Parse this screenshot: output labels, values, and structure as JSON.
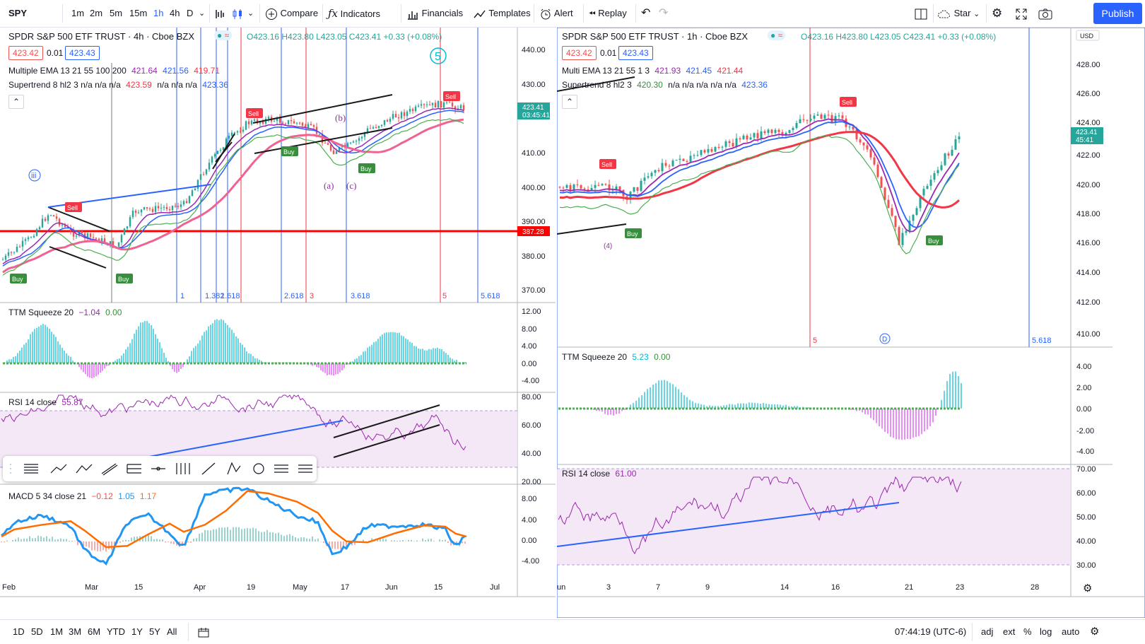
{
  "toolbar": {
    "symbol": "SPY",
    "intervals": [
      "1m",
      "2m",
      "5m",
      "15m",
      "1h",
      "4h",
      "D"
    ],
    "compare": "Compare",
    "indicators": "Indicators",
    "financials": "Financials",
    "templates": "Templates",
    "alert": "Alert",
    "replay": "Replay",
    "star": "Star",
    "publish": "Publish"
  },
  "left_chart": {
    "title": "SPDR S&P 500 ETF TRUST · 4h · Cboe BZX",
    "ohlc": "O423.16 H423.80 L423.05 C423.41 +0.33 (+0.08%)",
    "bid": "423.42",
    "spread": "0.01",
    "ask": "423.43",
    "ema_label": "Multiple EMA 13 21 55 100 200",
    "ema_values": [
      "421.64",
      "421.56",
      "419.71"
    ],
    "st_label": "Supertrend 8 hl2 3  n/a n/a n/a",
    "st_values": [
      "423.59",
      "n/a n/a n/a",
      "423.36"
    ],
    "price_axis": [
      "440.00",
      "430.00",
      "410.00",
      "400.00",
      "390.00",
      "380.00",
      "370.00"
    ],
    "last_price": "423.41",
    "countdown": "03:45:41",
    "level_price": "387.28",
    "fib_labels": [
      "1",
      "1.382",
      "1.618",
      "2.618",
      "3",
      "3.618",
      "5",
      "5.618"
    ],
    "squeeze_label": "TTM Squeeze 20",
    "squeeze_values": [
      "−1.04",
      "0.00"
    ],
    "squeeze_axis": [
      "12.00",
      "8.00",
      "4.00",
      "0.00",
      "-4.00"
    ],
    "rsi_label": "RSI 14 close",
    "rsi_value": "55.87",
    "rsi_axis": [
      "80.00",
      "60.00",
      "40.00",
      "20.00"
    ],
    "macd_label": "MACD 5 34 close 21",
    "macd_values": [
      "−0.12",
      "1.05",
      "1.17"
    ],
    "macd_axis": [
      "8.00",
      "4.00",
      "0.00",
      "-4.00"
    ],
    "time_axis": [
      "Feb",
      "Mar",
      "15",
      "Apr",
      "19",
      "May",
      "17",
      "Jun",
      "15",
      "Jul"
    ],
    "wave_labels": [
      "5",
      "iii",
      "(a)",
      "(c)",
      "(b)"
    ],
    "signals": [
      "Sell",
      "Sell",
      "Sell",
      "Buy",
      "Buy",
      "Buy",
      "Buy"
    ]
  },
  "right_chart": {
    "title": "SPDR S&P 500 ETF TRUST · 1h · Cboe BZX",
    "ohlc": "O423.16 H423.80 L423.05 C423.41 +0.33 (+0.08%)",
    "bid": "423.42",
    "spread": "0.01",
    "ask": "423.43",
    "ema_label": "Multi EMA 13 21 55 1 3",
    "ema_values": [
      "421.93",
      "421.45",
      "421.44"
    ],
    "st_label": "Supertrend 8 hl2 3",
    "st_values": [
      "420.30",
      "n/a n/a n/a n/a n/a",
      "423.36"
    ],
    "currency": "USD",
    "price_axis": [
      "428.00",
      "426.00",
      "424.00",
      "422.00",
      "420.00",
      "418.00",
      "416.00",
      "414.00",
      "412.00",
      "410.00"
    ],
    "last_price": "423.41",
    "countdown": "45:41",
    "fib_labels": [
      "5",
      "5.618"
    ],
    "squeeze_label": "TTM Squeeze 20",
    "squeeze_values": [
      "5.23",
      "0.00"
    ],
    "squeeze_axis": [
      "4.00",
      "2.00",
      "0.00",
      "-2.00",
      "-4.00"
    ],
    "rsi_label": "RSI 14 close",
    "rsi_value": "61.00",
    "rsi_axis": [
      "70.00",
      "60.00",
      "50.00",
      "40.00",
      "30.00"
    ],
    "time_axis": [
      "un",
      "3",
      "7",
      "9",
      "14",
      "16",
      "21",
      "23",
      "28"
    ],
    "signals": [
      "Sell",
      "Sell",
      "Buy",
      "Buy"
    ],
    "wave_labels": [
      "(4)",
      "D"
    ]
  },
  "bottombar": {
    "ranges": [
      "1D",
      "5D",
      "1M",
      "3M",
      "6M",
      "YTD",
      "1Y",
      "5Y",
      "All"
    ],
    "time": "07:44:19 (UTC-6)",
    "adj": "adj",
    "ext": "ext",
    "pct": "%",
    "log": "log",
    "auto": "auto"
  },
  "colors": {
    "accent": "#2962ff",
    "up": "#26a69a",
    "down": "#ef5350",
    "ema_purple": "#9c27b0",
    "ema_blue": "#2962ff",
    "ema_red": "#f23645",
    "supertrend_green": "#4caf50",
    "rsi_purple": "#9c27b0",
    "macd_blue": "#2196f3",
    "macd_orange": "#ff6d00",
    "squeeze_cyan": "#00bcd4",
    "squeeze_magenta": "#e040fb"
  }
}
